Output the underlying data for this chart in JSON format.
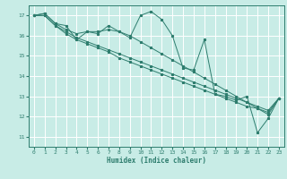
{
  "title": "",
  "xlabel": "Humidex (Indice chaleur)",
  "xlim": [
    -0.5,
    23.5
  ],
  "ylim": [
    10.5,
    17.5
  ],
  "xticks": [
    0,
    1,
    2,
    3,
    4,
    5,
    6,
    7,
    8,
    9,
    10,
    11,
    12,
    13,
    14,
    15,
    16,
    17,
    18,
    19,
    20,
    21,
    22,
    23
  ],
  "yticks": [
    11,
    12,
    13,
    14,
    15,
    16,
    17
  ],
  "bg_color": "#c8ece6",
  "line_color": "#2e7d6e",
  "grid_color": "#ffffff",
  "series": [
    [
      17.0,
      17.1,
      16.6,
      16.5,
      15.8,
      16.2,
      16.1,
      16.5,
      16.2,
      15.9,
      17.0,
      17.2,
      16.8,
      16.0,
      14.4,
      14.3,
      15.8,
      13.1,
      13.0,
      12.8,
      13.0,
      11.2,
      11.9,
      12.9
    ],
    [
      17.0,
      17.1,
      16.6,
      16.3,
      16.1,
      16.2,
      16.2,
      16.3,
      16.2,
      16.0,
      15.7,
      15.4,
      15.1,
      14.8,
      14.5,
      14.2,
      13.9,
      13.6,
      13.3,
      13.0,
      12.7,
      12.4,
      12.1,
      12.9
    ],
    [
      17.0,
      17.0,
      16.5,
      16.2,
      15.9,
      15.7,
      15.5,
      15.3,
      15.1,
      14.9,
      14.7,
      14.5,
      14.3,
      14.1,
      13.9,
      13.7,
      13.5,
      13.3,
      13.1,
      12.9,
      12.7,
      12.5,
      12.3,
      12.9
    ],
    [
      17.0,
      17.0,
      16.5,
      16.1,
      15.8,
      15.6,
      15.4,
      15.2,
      14.9,
      14.7,
      14.5,
      14.3,
      14.1,
      13.9,
      13.7,
      13.5,
      13.3,
      13.1,
      12.9,
      12.7,
      12.5,
      12.4,
      12.2,
      12.9
    ]
  ]
}
